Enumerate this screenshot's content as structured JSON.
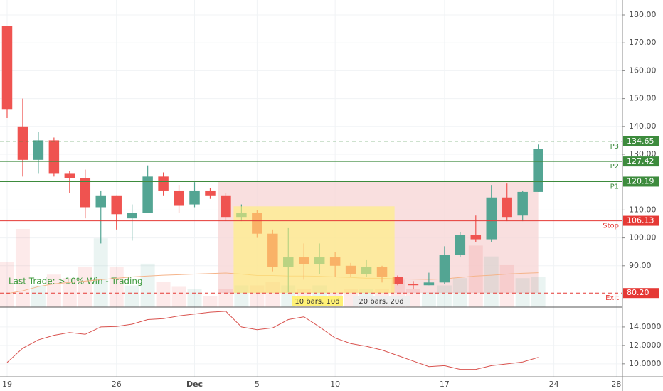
{
  "chart_data": {
    "type": "candlestick",
    "x": [
      0,
      1,
      2,
      3,
      4,
      5,
      6,
      7,
      8,
      9,
      10,
      11,
      12,
      13,
      14,
      15,
      16,
      17,
      18,
      19,
      20,
      21,
      22,
      23,
      24,
      25,
      26,
      27,
      28,
      29,
      30,
      31,
      32,
      33,
      34
    ],
    "open": [
      176,
      140,
      128,
      135,
      123,
      121.5,
      111,
      115,
      107,
      109,
      122,
      117,
      112,
      117,
      115,
      107.5,
      109,
      101.5,
      89.5,
      93,
      90.5,
      93,
      90,
      87,
      89.5,
      86,
      83.5,
      83,
      84,
      94,
      101,
      99.5,
      114.5,
      108,
      116.5
    ],
    "high": [
      176,
      150,
      138,
      136,
      124,
      124.5,
      117,
      115,
      112,
      126,
      123.5,
      119,
      120,
      118,
      116,
      112,
      110,
      103,
      103.5,
      98,
      98,
      95,
      91,
      92,
      90,
      86.5,
      84.5,
      87.5,
      97,
      102,
      108,
      119,
      119.5,
      117,
      133.5
    ],
    "low": [
      143,
      122,
      123,
      122,
      116,
      107,
      98,
      103,
      99,
      109,
      115,
      109,
      111,
      114,
      106,
      106,
      100,
      88,
      80.5,
      85,
      87,
      86,
      86,
      86,
      84,
      83,
      81.5,
      83,
      83.5,
      93,
      98.5,
      98.5,
      106,
      106,
      116.5
    ],
    "close": [
      146,
      128,
      135,
      123,
      121.5,
      111,
      115,
      108.5,
      109,
      122,
      117,
      111.5,
      117,
      115,
      107.5,
      109,
      101.5,
      89.5,
      93,
      90.5,
      93,
      90,
      87,
      89.5,
      86,
      83.5,
      83,
      84,
      94,
      101,
      99.5,
      114.5,
      107.5,
      116.5,
      132
    ],
    "up_color": "#53a593",
    "down_color": "#ef5350",
    "volume": [
      62,
      108,
      30,
      45,
      40,
      55,
      95,
      55,
      30,
      60,
      35,
      28,
      25,
      15,
      25,
      30,
      30,
      35,
      30,
      25,
      30,
      20,
      25,
      25,
      25,
      38,
      25,
      20,
      30,
      40,
      85,
      70,
      58,
      40,
      42
    ],
    "moving_average": {
      "color": "#f5b48a",
      "values": [
        80,
        81,
        82.5,
        83.5,
        84,
        84.5,
        85,
        85.5,
        86,
        86.3,
        86.6,
        86.8,
        87,
        87.2,
        87.4,
        87,
        86.5,
        86.5,
        86.3,
        86.3,
        86.2,
        86,
        85.8,
        85.5,
        85.5,
        85.3,
        85.2,
        85.1,
        85.3,
        85.8,
        86.3,
        86.6,
        87,
        87.3,
        87.5
      ]
    },
    "xlim": [
      -0.455,
      39.39
    ],
    "xticks": [
      {
        "value": 0,
        "label": "19"
      },
      {
        "value": 7,
        "label": "26"
      },
      {
        "value": 12,
        "label": "Dec"
      },
      {
        "value": 16,
        "label": "5"
      },
      {
        "value": 21,
        "label": "10"
      },
      {
        "value": 28,
        "label": "17"
      },
      {
        "value": 35,
        "label": "24"
      },
      {
        "value": 39,
        "label": "28"
      }
    ],
    "ylim": [
      75.15,
      185.36
    ],
    "yticks": [
      {
        "value": 180,
        "label": "180.00"
      },
      {
        "value": 170,
        "label": "170.00"
      },
      {
        "value": 160,
        "label": "160.00"
      },
      {
        "value": 150,
        "label": "150.00"
      },
      {
        "value": 140,
        "label": "140.00"
      },
      {
        "value": 130,
        "label": "130.00"
      },
      {
        "value": 110,
        "label": "110.00"
      },
      {
        "value": 100,
        "label": "100.00"
      },
      {
        "value": 90,
        "label": "90.00"
      }
    ],
    "levels": [
      {
        "name": "P3",
        "value": 134.65,
        "label": "134.65",
        "color": "#3d8b3d",
        "dashed": true
      },
      {
        "name": "P2",
        "value": 127.42,
        "label": "127.42",
        "color": "#3d8b3d",
        "dashed": false
      },
      {
        "name": "P1",
        "value": 120.19,
        "label": "120.19",
        "color": "#3d8b3d",
        "dashed": false
      },
      {
        "name": "Stop",
        "value": 106.13,
        "label": "106.13",
        "color": "#e53935",
        "dashed": false
      },
      {
        "name": "Exit",
        "value": 80.2,
        "label": "80.20",
        "color": "#e53935",
        "dashed": true
      }
    ],
    "trade_zone": {
      "x": [
        14,
        34
      ],
      "y": [
        80.2,
        120.19
      ],
      "color": "#f8d7d7"
    },
    "hold_zone": {
      "x": [
        15,
        24.8
      ],
      "y": [
        80.2,
        111.3
      ],
      "color": "#fff176"
    },
    "zone_labels": [
      "10 bars, 10d",
      "20 bars, 20d"
    ],
    "annotation": "Last Trade: >10% Win - Trading",
    "indicator": {
      "color": "#d9534f",
      "ylim": [
        8.6,
        16.15
      ],
      "values": [
        10.15,
        11.7,
        12.6,
        13.1,
        13.4,
        13.2,
        14.0,
        14.05,
        14.3,
        14.8,
        14.9,
        15.2,
        15.4,
        15.6,
        15.7,
        14.0,
        13.7,
        13.9,
        14.8,
        15.1,
        14.0,
        12.8,
        12.2,
        11.9,
        11.5,
        10.9,
        10.3,
        9.7,
        9.8,
        9.4,
        9.4,
        9.8,
        10.0,
        10.2,
        10.7
      ],
      "yticks": [
        {
          "value": 14,
          "label": "14.0000"
        },
        {
          "value": 12,
          "label": "12.0000"
        },
        {
          "value": 10,
          "label": "10.0000"
        }
      ]
    }
  }
}
